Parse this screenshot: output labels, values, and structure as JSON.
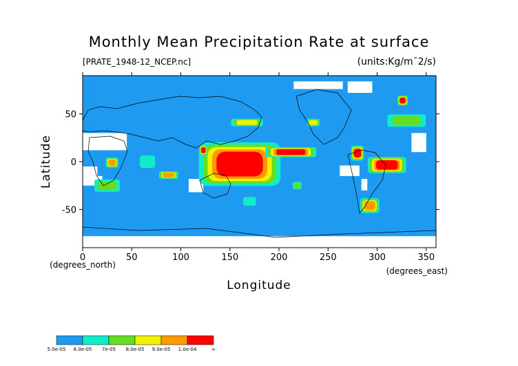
{
  "chart_data": {
    "type": "heatmap",
    "title": "Monthly Mean Precipitation Rate at surface",
    "subtitle_left": "[PRATE_1948-12_NCEP.nc]",
    "units": "(units:Kg/m¯2/s)",
    "xlabel": "Longitude",
    "ylabel": "Latitude",
    "x_unit_label": "(degrees_east)",
    "y_unit_label": "(degrees_north)",
    "xlim": [
      0,
      360
    ],
    "ylim": [
      -90,
      90
    ],
    "x_ticks": [
      0,
      50,
      100,
      150,
      200,
      250,
      300,
      350
    ],
    "y_ticks": [
      50,
      0,
      -50
    ],
    "grid": false,
    "colorbar": {
      "placement": "bottom-left",
      "colors": [
        "#1e9bf0",
        "#12ecc6",
        "#66dd22",
        "#f2f200",
        "#ff9900",
        "#ff0000"
      ],
      "labels": [
        "5.0e-05",
        "6.0e-05",
        "7e-05",
        "8.0e-05",
        "9.0e-05",
        "1.0e-04",
        "∞"
      ]
    },
    "regions": [
      {
        "level": 5,
        "lon_min": 128,
        "lon_max": 192,
        "lat_min": -20,
        "lat_max": 15
      },
      {
        "level": 5,
        "lon_min": 192,
        "lon_max": 232,
        "lat_min": 6,
        "lat_max": 14
      },
      {
        "level": 5,
        "lon_min": 275,
        "lon_max": 285,
        "lat_min": 3,
        "lat_max": 15
      },
      {
        "level": 5,
        "lon_min": 295,
        "lon_max": 325,
        "lat_min": -10,
        "lat_max": 3
      },
      {
        "level": 5,
        "lon_min": 322,
        "lon_max": 330,
        "lat_min": 60,
        "lat_max": 68
      },
      {
        "level": 5,
        "lon_min": 120,
        "lon_max": 126,
        "lat_min": 8,
        "lat_max": 16
      },
      {
        "level": 4,
        "lon_min": 80,
        "lon_max": 95,
        "lat_min": -17,
        "lat_max": -11
      },
      {
        "level": 4,
        "lon_min": 25,
        "lon_max": 35,
        "lat_min": -5,
        "lat_max": 3
      },
      {
        "level": 4,
        "lon_min": 285,
        "lon_max": 300,
        "lat_min": -52,
        "lat_max": -40
      },
      {
        "level": 3,
        "lon_min": 230,
        "lon_max": 240,
        "lat_min": 38,
        "lat_max": 44
      },
      {
        "level": 3,
        "lon_min": 155,
        "lon_max": 180,
        "lat_min": 38,
        "lat_max": 44
      },
      {
        "level": 2,
        "lon_min": 315,
        "lon_max": 345,
        "lat_min": 38,
        "lat_max": 48
      },
      {
        "level": 2,
        "lon_min": 215,
        "lon_max": 222,
        "lat_min": -28,
        "lat_max": -22
      },
      {
        "level": 2,
        "lon_min": 15,
        "lon_max": 35,
        "lat_min": -30,
        "lat_max": -20
      },
      {
        "level": 1,
        "lon_min": 165,
        "lon_max": 175,
        "lat_min": -45,
        "lat_max": -38
      },
      {
        "level": 1,
        "lon_min": 60,
        "lon_max": 72,
        "lat_min": -5,
        "lat_max": 5
      }
    ],
    "missing": [
      {
        "lon_min": 0,
        "lon_max": 45,
        "lat_min": 12,
        "lat_max": 30
      },
      {
        "lon_min": 0,
        "lon_max": 15,
        "lat_min": -15,
        "lat_max": -5
      },
      {
        "lon_min": 0,
        "lon_max": 20,
        "lat_min": -25,
        "lat_max": -15
      },
      {
        "lon_min": 108,
        "lon_max": 123,
        "lat_min": -32,
        "lat_max": -18
      },
      {
        "lon_min": 262,
        "lon_max": 282,
        "lat_min": -15,
        "lat_max": -4
      },
      {
        "lon_min": 284,
        "lon_max": 290,
        "lat_min": -30,
        "lat_max": -18
      },
      {
        "lon_min": 335,
        "lon_max": 350,
        "lat_min": 10,
        "lat_max": 30
      },
      {
        "lon_min": 0,
        "lon_max": 360,
        "lat_min": -90,
        "lat_max": -78
      },
      {
        "lon_min": 215,
        "lon_max": 265,
        "lat_min": 76,
        "lat_max": 84
      },
      {
        "lon_min": 270,
        "lon_max": 295,
        "lat_min": 72,
        "lat_max": 84
      }
    ]
  }
}
